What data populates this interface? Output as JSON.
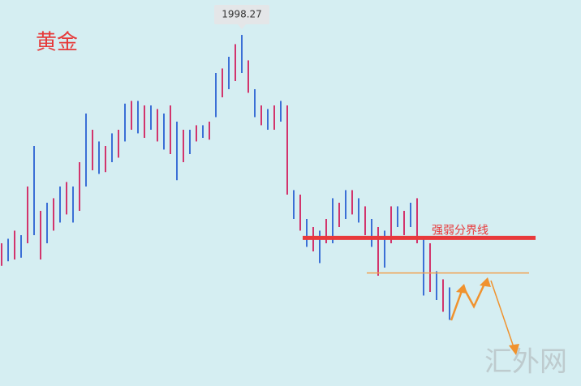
{
  "chart_data": {
    "type": "range_bar",
    "title": "黄金",
    "high": [
      1767,
      1772,
      1781,
      1776,
      1830,
      1875,
      1803,
      1812,
      1817,
      1830,
      1835,
      1830,
      1857,
      1911,
      1893,
      1880,
      1875,
      1889,
      1893,
      1922,
      1925,
      1925,
      1920,
      1920,
      1916,
      1911,
      1920,
      1902,
      1893,
      1893,
      1898,
      1898,
      1902,
      1956,
      1961,
      1974,
      1988,
      1998.27,
      1970,
      1938,
      1920,
      1916,
      1920,
      1925,
      1920,
      1826,
      1821,
      1794,
      1785,
      1781,
      1794,
      1817,
      1812,
      1826,
      1826,
      1817,
      1808,
      1794,
      1785,
      1781,
      1808,
      1808,
      1803,
      1812,
      1817,
      1772,
      1767,
      1736,
      1727,
      1718
    ],
    "low": [
      1742,
      1747,
      1749,
      1751,
      1767,
      1776,
      1749,
      1767,
      1781,
      1790,
      1799,
      1790,
      1803,
      1830,
      1848,
      1844,
      1846,
      1857,
      1862,
      1880,
      1893,
      1889,
      1884,
      1893,
      1880,
      1871,
      1866,
      1837,
      1857,
      1866,
      1880,
      1884,
      1882,
      1907,
      1929,
      1938,
      1947,
      1956,
      1934,
      1907,
      1898,
      1893,
      1893,
      1902,
      1821,
      1794,
      1781,
      1763,
      1758,
      1745,
      1767,
      1767,
      1785,
      1794,
      1799,
      1790,
      1776,
      1763,
      1731,
      1740,
      1767,
      1785,
      1776,
      1785,
      1767,
      1709,
      1713,
      1704,
      1691,
      1682
    ],
    "colors": [
      "#d2346c",
      "#3b6fd6"
    ],
    "peak_index": 37,
    "levels": [
      {
        "label": "强弱分界线",
        "value": 1773,
        "color": "#e8393b"
      },
      {
        "value": 1734,
        "color": "#f0a050"
      }
    ],
    "ylim": [
      1608.6,
      2037
    ],
    "watermark": "汇外网"
  }
}
